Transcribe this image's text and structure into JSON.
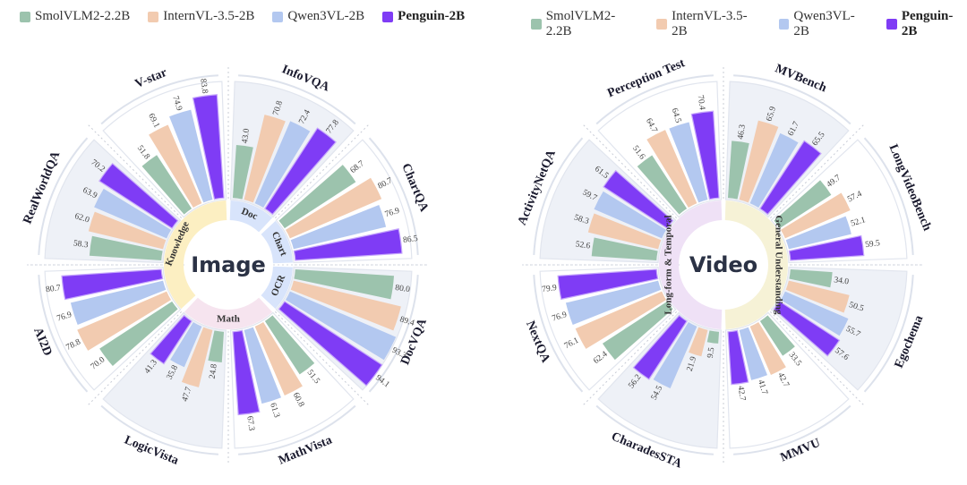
{
  "legend": [
    {
      "name": "SmolVLM2-2.2B",
      "color": "#9cc3ad",
      "bold": false
    },
    {
      "name": "InternVL-3.5-2B",
      "color": "#f2cbb0",
      "bold": false
    },
    {
      "name": "Qwen3VL-2B",
      "color": "#b3c8f0",
      "bold": false
    },
    {
      "name": "Penguin-2B",
      "color": "#7f3cf5",
      "bold": true
    }
  ],
  "chart_data": [
    {
      "type": "radial-bar",
      "title": "Image",
      "series_names": [
        "SmolVLM2-2.2B",
        "InternVL-3.5-2B",
        "Qwen3VL-2B",
        "Penguin-2B"
      ],
      "categories": [
        "InfoVQA",
        "ChartQA",
        "DocVQA",
        "MathVista",
        "LogicVista",
        "AI2D",
        "RealWorldQA",
        "V-star"
      ],
      "series": [
        {
          "name": "SmolVLM2-2.2B",
          "values": [
            43.0,
            68.7,
            80.0,
            51.5,
            24.8,
            70.0,
            58.3,
            51.8
          ]
        },
        {
          "name": "InternVL-3.5-2B",
          "values": [
            70.8,
            80.7,
            89.4,
            60.8,
            47.7,
            78.8,
            62.0,
            69.1
          ]
        },
        {
          "name": "Qwen3VL-2B",
          "values": [
            72.4,
            76.9,
            93.3,
            61.3,
            35.8,
            76.9,
            63.9,
            74.9
          ]
        },
        {
          "name": "Penguin-2B",
          "values": [
            77.8,
            86.5,
            94.1,
            67.3,
            41.3,
            80.7,
            70.2,
            83.8
          ]
        }
      ],
      "groups": [
        {
          "label": "Doc",
          "color": "#d8e4fb",
          "categories": [
            "InfoVQA"
          ]
        },
        {
          "label": "Chart",
          "color": "#d8e4fb",
          "categories": [
            "ChartQA"
          ]
        },
        {
          "label": "OCR",
          "color": "#d8e4fb",
          "categories": [
            "DocVQA"
          ]
        },
        {
          "label": "Math",
          "color": "#f6e4ef",
          "categories": [
            "MathVista",
            "LogicVista"
          ]
        },
        {
          "label": "Knowledge",
          "color": "#fcefc2",
          "categories": [
            "AI2D",
            "RealWorldQA",
            "V-star"
          ]
        }
      ],
      "shaded": [
        true,
        false,
        true,
        false,
        true,
        false,
        true,
        false
      ]
    },
    {
      "type": "radial-bar",
      "title": "Video",
      "series_names": [
        "SmolVLM2-2.2B",
        "InternVL-3.5-2B",
        "Qwen3VL-2B",
        "Penguin-2B"
      ],
      "categories": [
        "MVBench",
        "LongVideoBench",
        "Egochema",
        "MMVU",
        "CharadesSTA",
        "NextQA",
        "ActivityNetQA",
        "Perception Test"
      ],
      "series": [
        {
          "name": "SmolVLM2-2.2B",
          "values": [
            46.3,
            49.7,
            34.0,
            33.5,
            9.5,
            62.4,
            52.6,
            51.6
          ]
        },
        {
          "name": "InternVL-3.5-2B",
          "values": [
            65.9,
            57.4,
            50.5,
            42.7,
            21.9,
            76.1,
            58.3,
            64.7
          ]
        },
        {
          "name": "Qwen3VL-2B",
          "values": [
            61.7,
            52.1,
            55.7,
            41.7,
            54.5,
            76.9,
            59.7,
            64.5
          ]
        },
        {
          "name": "Penguin-2B",
          "values": [
            65.5,
            59.5,
            57.6,
            42.7,
            56.2,
            79.9,
            61.5,
            70.4
          ]
        }
      ],
      "groups": [
        {
          "label": "General Understanding",
          "color": "#f6f2d6",
          "categories": [
            "MVBench",
            "LongVideoBench",
            "Egochema",
            "MMVU"
          ]
        },
        {
          "label": "Long-form & Temporal",
          "color": "#efe1f6",
          "categories": [
            "CharadesSTA",
            "NextQA",
            "ActivityNetQA",
            "Perception Test"
          ]
        }
      ],
      "shaded": [
        true,
        false,
        true,
        false,
        true,
        false,
        true,
        false
      ]
    }
  ]
}
